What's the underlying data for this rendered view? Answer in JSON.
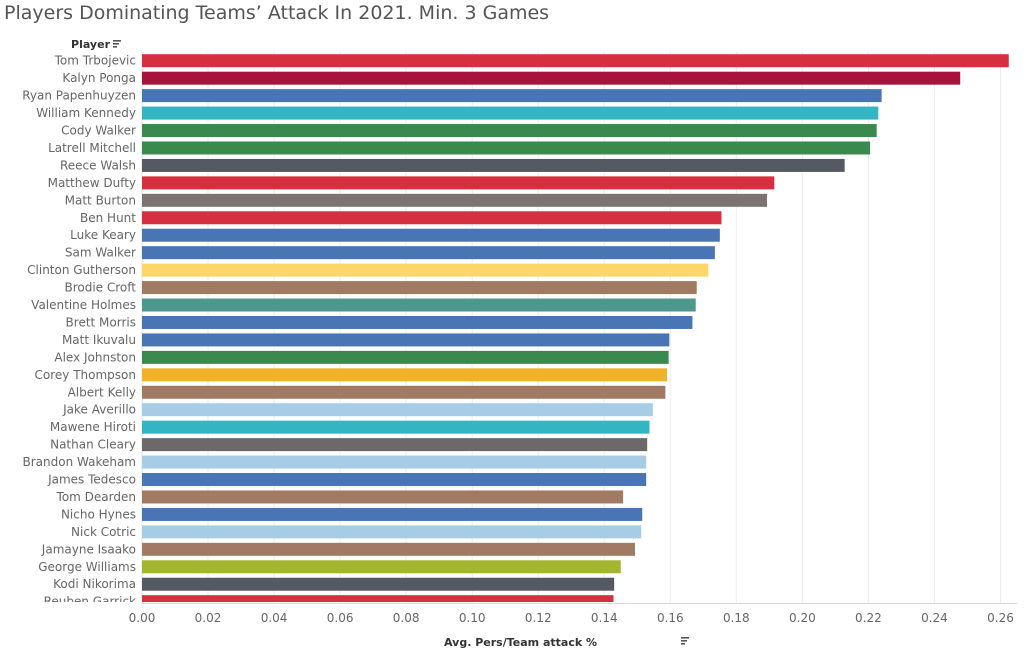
{
  "chart_data": {
    "type": "bar",
    "orientation": "horizontal",
    "title": "Players Dominating Teams’ Attack In 2021. Min. 3 Games",
    "ylabel": "Player",
    "xlabel": "Avg. Pers/Team attack %",
    "xlim": [
      0,
      0.265
    ],
    "xticks": [
      "0.00",
      "0.02",
      "0.04",
      "0.06",
      "0.08",
      "0.10",
      "0.12",
      "0.14",
      "0.16",
      "0.18",
      "0.20",
      "0.22",
      "0.24",
      "0.26"
    ],
    "grid": true,
    "sort_icon_color": "#555555",
    "categories": [
      "Tom Trbojevic",
      "Kalyn Ponga",
      "Ryan Papenhuyzen",
      "William Kennedy",
      "Cody Walker",
      "Latrell Mitchell",
      "Reece Walsh",
      "Matthew Dufty",
      "Matt Burton",
      "Ben Hunt",
      "Luke Keary",
      "Sam Walker",
      "Clinton Gutherson",
      "Brodie Croft",
      "Valentine Holmes",
      "Brett Morris",
      "Matt Ikuvalu",
      "Alex Johnston",
      "Corey Thompson",
      "Albert Kelly",
      "Jake Averillo",
      "Mawene Hiroti",
      "Nathan Cleary",
      "Brandon Wakeham",
      "James Tedesco",
      "Tom Dearden",
      "Nicho Hynes",
      "Nick Cotric",
      "Jamayne Isaako",
      "George Williams",
      "Kodi Nikorima",
      "Reuben Garrick"
    ],
    "values": [
      0.2625,
      0.2478,
      0.224,
      0.223,
      0.2225,
      0.2205,
      0.2128,
      0.1915,
      0.1893,
      0.1755,
      0.175,
      0.1735,
      0.1715,
      0.168,
      0.1677,
      0.1667,
      0.1597,
      0.1595,
      0.159,
      0.1585,
      0.1547,
      0.1537,
      0.153,
      0.1527,
      0.1527,
      0.1457,
      0.1515,
      0.1512,
      0.1493,
      0.145,
      0.143,
      0.1428
    ],
    "colors": [
      "#d63040",
      "#a8123c",
      "#4a75b4",
      "#33b5c4",
      "#3a8a4e",
      "#3a8a4e",
      "#555962",
      "#d63040",
      "#7a7472",
      "#d63040",
      "#4a75b4",
      "#4a75b4",
      "#fcd667",
      "#a07a62",
      "#4e978d",
      "#4a75b4",
      "#4a75b4",
      "#3a8a4e",
      "#f1b22b",
      "#a07a62",
      "#a6cce6",
      "#33b5c4",
      "#6d6869",
      "#a6cce6",
      "#4a75b4",
      "#a07a62",
      "#4a75b4",
      "#a6cce6",
      "#a07a62",
      "#a5b52f",
      "#555962",
      "#d63040"
    ]
  }
}
